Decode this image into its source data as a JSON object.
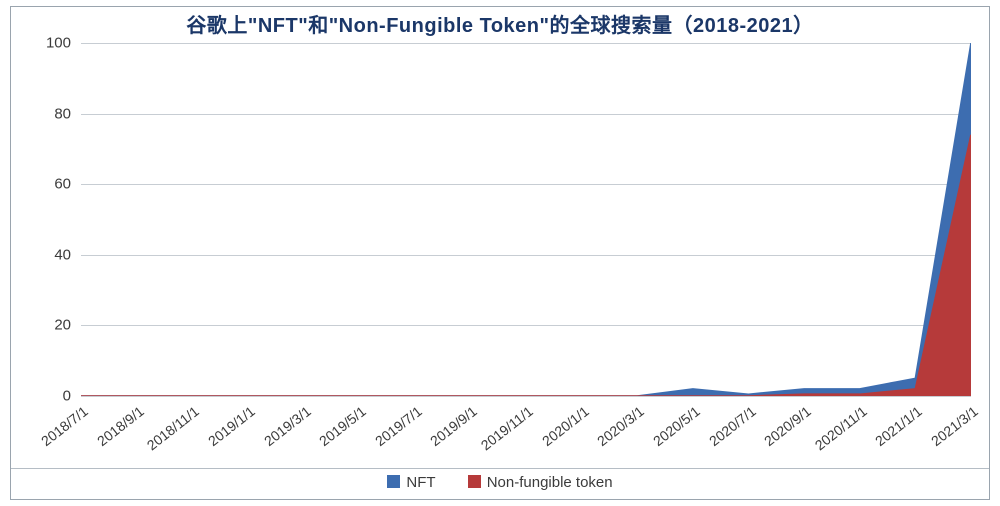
{
  "chart": {
    "type": "area-line",
    "title": "谷歌上\"NFT\"和\"Non-Fungible Token\"的全球搜索量（2018-2021）",
    "title_fontsize": 20,
    "title_color": "#1b3768",
    "background_color": "#ffffff",
    "border_color": "#9aa4ae",
    "grid_color": "#c7cdd3",
    "x_categories": [
      "2018/7/1",
      "2018/9/1",
      "2018/11/1",
      "2019/1/1",
      "2019/3/1",
      "2019/5/1",
      "2019/7/1",
      "2019/9/1",
      "2019/11/1",
      "2020/1/1",
      "2020/3/1",
      "2020/5/1",
      "2020/7/1",
      "2020/9/1",
      "2020/11/1",
      "2021/1/1",
      "2021/3/1"
    ],
    "x_label_rotation_deg": -38,
    "x_label_fontsize": 14,
    "y_ticks": [
      0,
      20,
      40,
      60,
      80,
      100
    ],
    "y_label_fontsize": 15,
    "ylim": [
      0,
      100
    ],
    "series": [
      {
        "name": "NFT",
        "label": "NFT",
        "color": "#3d6db0",
        "fill_color": "#3d6db0",
        "fill_opacity": 1.0,
        "line_width": 1.6,
        "values": [
          0,
          0,
          0,
          0,
          0,
          0,
          0,
          0,
          0,
          0,
          0,
          2,
          0.5,
          2,
          2,
          5,
          100
        ]
      },
      {
        "name": "Non-fungible token",
        "label": "Non-fungible token",
        "color": "#b63a3a",
        "fill_color": "#b63a3a",
        "fill_opacity": 1.0,
        "line_width": 1.6,
        "values": [
          0,
          0,
          0,
          0,
          0,
          0,
          0,
          0,
          0,
          0,
          0,
          0,
          0,
          0.5,
          0.5,
          2,
          74
        ]
      }
    ],
    "legend": {
      "items": [
        {
          "label": "NFT",
          "color": "#3d6db0"
        },
        {
          "label": "Non-fungible token",
          "color": "#b63a3a"
        }
      ],
      "fontsize": 15,
      "position": "bottom-center"
    }
  }
}
